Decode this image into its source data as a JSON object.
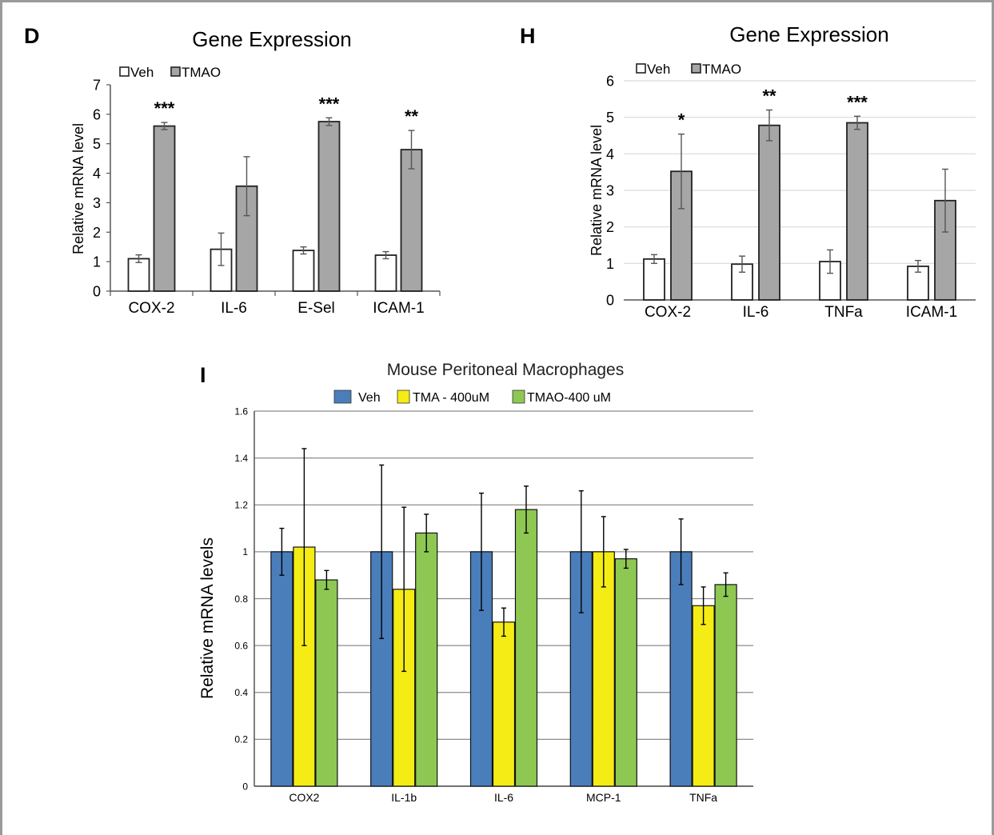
{
  "chart_data": [
    {
      "panel_label": "D",
      "type": "bar",
      "title": "Gene Expression",
      "ylabel": "Relative mRNA level",
      "xlabel": "",
      "ylim": [
        0,
        7
      ],
      "yticks": [
        "0",
        "1",
        "2",
        "3",
        "4",
        "5",
        "6",
        "7"
      ],
      "categories": [
        "COX-2",
        "IL-6",
        "E-Sel",
        "ICAM-1"
      ],
      "series": [
        {
          "name": "Veh",
          "color": "#ffffff",
          "values": [
            1.1,
            1.42,
            1.38,
            1.22
          ],
          "errors": [
            0.13,
            0.55,
            0.12,
            0.12
          ]
        },
        {
          "name": "TMAO",
          "color": "#a6a6a6",
          "values": [
            5.6,
            3.56,
            5.75,
            4.8
          ],
          "errors": [
            0.12,
            1.0,
            0.13,
            0.65
          ]
        }
      ],
      "annotations": [
        "***",
        "",
        "***",
        "**"
      ],
      "legend": "top-left",
      "grid": false
    },
    {
      "panel_label": "H",
      "type": "bar",
      "title": "Gene Expression",
      "ylabel": "Relative mRNA level",
      "xlabel": "",
      "ylim": [
        0,
        6
      ],
      "yticks": [
        "0",
        "1",
        "2",
        "3",
        "4",
        "5",
        "6"
      ],
      "categories": [
        "COX-2",
        "IL-6",
        "TNFa",
        "ICAM-1"
      ],
      "series": [
        {
          "name": "Veh",
          "color": "#ffffff",
          "values": [
            1.12,
            0.98,
            1.05,
            0.92
          ],
          "errors": [
            0.12,
            0.22,
            0.32,
            0.16
          ]
        },
        {
          "name": "TMAO",
          "color": "#a6a6a6",
          "values": [
            3.52,
            4.78,
            4.85,
            2.72
          ],
          "errors": [
            1.02,
            0.42,
            0.18,
            0.86
          ]
        }
      ],
      "annotations": [
        "*",
        "**",
        "***",
        ""
      ],
      "legend": "top-left",
      "grid": true
    },
    {
      "panel_label": "I",
      "type": "bar",
      "title": "Mouse Peritoneal Macrophages",
      "ylabel": "Relative mRNA levels",
      "xlabel": "",
      "ylim": [
        0,
        1.6
      ],
      "yticks": [
        "0",
        "0.2",
        "0.4",
        "0.6",
        "0.8",
        "1",
        "1.2",
        "1.4",
        "1.6"
      ],
      "categories": [
        "COX2",
        "IL-1b",
        "IL-6",
        "MCP-1",
        "TNFa"
      ],
      "series": [
        {
          "name": "Veh",
          "color": "#4a7ebb",
          "values": [
            1.0,
            1.0,
            1.0,
            1.0,
            1.0
          ],
          "errors": [
            0.1,
            0.37,
            0.25,
            0.26,
            0.14
          ]
        },
        {
          "name": "TMA - 400uM",
          "color": "#f4ec14",
          "values": [
            1.02,
            0.84,
            0.7,
            1.0,
            0.77
          ],
          "errors": [
            0.42,
            0.35,
            0.06,
            0.15,
            0.08
          ]
        },
        {
          "name": "TMAO-400 uM",
          "color": "#8ec853",
          "values": [
            0.88,
            1.08,
            1.18,
            0.97,
            0.86
          ],
          "errors": [
            0.04,
            0.08,
            0.1,
            0.04,
            0.05
          ]
        }
      ],
      "annotations": [],
      "legend": "top-center",
      "grid": true
    }
  ]
}
